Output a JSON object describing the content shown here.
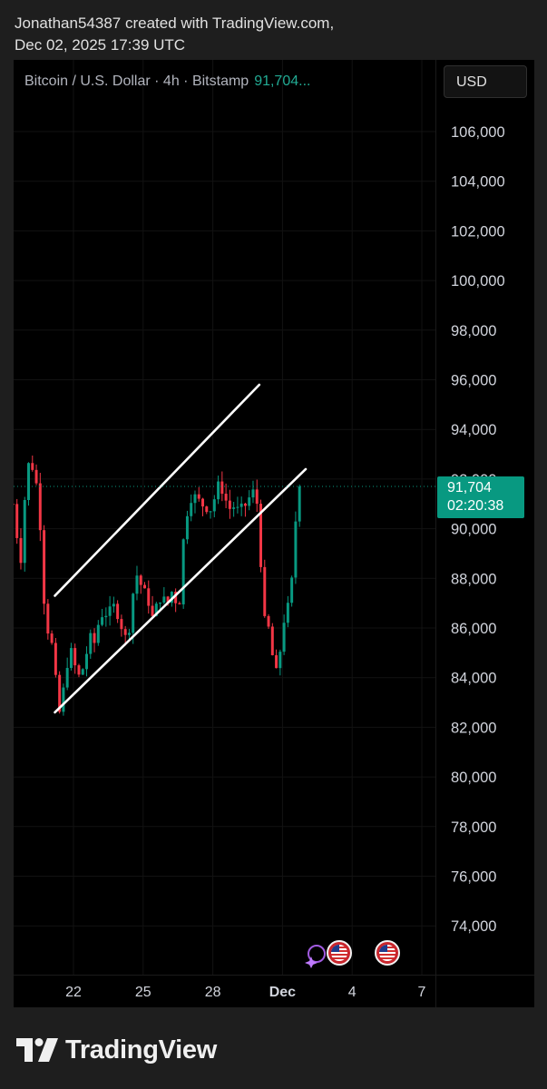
{
  "header": {
    "line1": "Jonathan54387 created with TradingView.com,",
    "line2": "Dec 02, 2025 17:39 UTC"
  },
  "symbol": {
    "name": "Bitcoin / U.S. Dollar · 4h · Bitstamp",
    "last_price": "91,704..."
  },
  "currency_button": "USD",
  "price_tag": {
    "price": "91,704",
    "countdown": "02:20:38"
  },
  "footer": {
    "brand": "TradingView"
  },
  "colors": {
    "up": "#089981",
    "down": "#f23645",
    "trendline": "#ffffff",
    "background": "#000000"
  },
  "icons": [
    "tradingview-logo-icon",
    "economic-event-us-flag-icon"
  ],
  "chart_data": {
    "type": "candlestick",
    "title": "Bitcoin / U.S. Dollar · 4h · Bitstamp",
    "xlabel": "",
    "ylabel": "",
    "ylim": [
      72500,
      108000
    ],
    "y_ticks": [
      "106,000",
      "104,000",
      "102,000",
      "100,000",
      "98,000",
      "96,000",
      "94,000",
      "92,000",
      "90,000",
      "88,000",
      "86,000",
      "84,000",
      "82,000",
      "80,000",
      "78,000",
      "76,000",
      "74,000"
    ],
    "x_ticks": [
      {
        "label": "22",
        "day": 22
      },
      {
        "label": "25",
        "day": 25
      },
      {
        "label": "28",
        "day": 28
      },
      {
        "label": "Dec",
        "day": 31,
        "bold": true
      },
      {
        "label": "4",
        "day": 34
      },
      {
        "label": "7",
        "day": 37
      }
    ],
    "last_price": 91704,
    "candles_4h_close_path": [
      [
        19.4,
        91000
      ],
      [
        19.6,
        89500
      ],
      [
        19.8,
        88500
      ],
      [
        19.9,
        91200
      ],
      [
        20.0,
        92300
      ],
      [
        20.1,
        92700
      ],
      [
        20.3,
        92400
      ],
      [
        20.4,
        91800
      ],
      [
        20.55,
        90500
      ],
      [
        20.7,
        87500
      ],
      [
        20.85,
        86000
      ],
      [
        21.0,
        85800
      ],
      [
        21.15,
        84700
      ],
      [
        21.3,
        83200
      ],
      [
        21.45,
        82300
      ],
      [
        21.6,
        83800
      ],
      [
        21.75,
        84700
      ],
      [
        21.9,
        85000
      ],
      [
        22.05,
        84500
      ],
      [
        22.2,
        84000
      ],
      [
        22.35,
        84200
      ],
      [
        22.5,
        84700
      ],
      [
        22.7,
        85600
      ],
      [
        22.9,
        85400
      ],
      [
        23.1,
        86300
      ],
      [
        23.3,
        86700
      ],
      [
        23.5,
        86500
      ],
      [
        23.7,
        86900
      ],
      [
        23.9,
        86600
      ],
      [
        24.1,
        86000
      ],
      [
        24.3,
        85400
      ],
      [
        24.5,
        86700
      ],
      [
        24.65,
        88300
      ],
      [
        24.8,
        88000
      ],
      [
        25.0,
        87500
      ],
      [
        25.2,
        87200
      ],
      [
        25.4,
        86400
      ],
      [
        25.6,
        86900
      ],
      [
        25.8,
        87400
      ],
      [
        26.0,
        86800
      ],
      [
        26.15,
        87300
      ],
      [
        26.3,
        87600
      ],
      [
        26.45,
        86900
      ],
      [
        26.6,
        87200
      ],
      [
        26.75,
        89800
      ],
      [
        26.9,
        90700
      ],
      [
        27.1,
        91400
      ],
      [
        27.3,
        91200
      ],
      [
        27.5,
        91000
      ],
      [
        27.7,
        90900
      ],
      [
        27.9,
        90800
      ],
      [
        28.1,
        91300
      ],
      [
        28.3,
        91900
      ],
      [
        28.5,
        91300
      ],
      [
        28.7,
        90800
      ],
      [
        28.9,
        90900
      ],
      [
        29.1,
        90700
      ],
      [
        29.3,
        90800
      ],
      [
        29.5,
        91100
      ],
      [
        29.7,
        91500
      ],
      [
        29.85,
        91300
      ],
      [
        30.0,
        90500
      ],
      [
        30.15,
        86400
      ],
      [
        30.3,
        86100
      ],
      [
        30.45,
        85900
      ],
      [
        30.6,
        84600
      ],
      [
        30.75,
        84100
      ],
      [
        30.9,
        85100
      ],
      [
        31.05,
        86300
      ],
      [
        31.2,
        86700
      ],
      [
        31.35,
        87200
      ],
      [
        31.5,
        89200
      ],
      [
        31.6,
        90900
      ],
      [
        31.7,
        91704
      ]
    ]
  }
}
